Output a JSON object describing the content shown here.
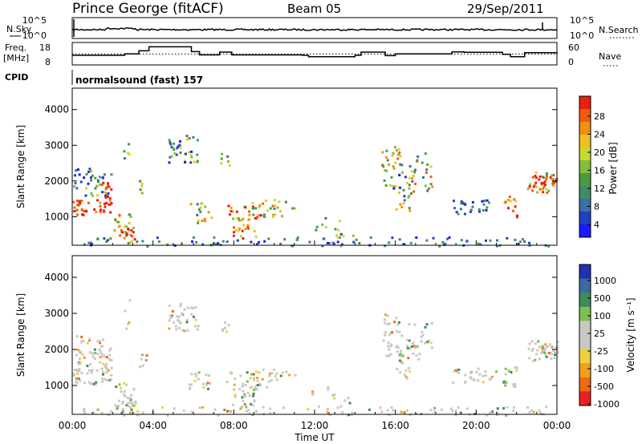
{
  "header": {
    "station": "Prince George (fitACF)",
    "beam": "Beam 05",
    "date": "29/Sep/2011"
  },
  "left_labels": {
    "nsky": "N.Sky",
    "freq_line1": "Freq.",
    "freq_line2": "[MHz]",
    "cpid": "CPID"
  },
  "right_labels": {
    "nsearch": "N.Search",
    "nave": "Nave"
  },
  "cpid_text": "normalsound (fast) 157",
  "chart_data": [
    {
      "type": "line",
      "panel": "noise",
      "ylim_ticks": [
        "10^5",
        "10^0"
      ],
      "right_ticks": [
        "10^5",
        "10^0"
      ],
      "series": [
        {
          "name": "N.Sky",
          "style": "solid"
        },
        {
          "name": "N.Search",
          "style": "dotted"
        }
      ]
    },
    {
      "type": "line",
      "panel": "frequency",
      "left_ticks": [
        "18",
        "8"
      ],
      "right_ticks": [
        "60",
        "0"
      ],
      "series": [
        {
          "name": "Freq.",
          "style": "solid",
          "x": [
            0,
            2.6,
            3.3,
            3.8,
            5.9,
            6.3,
            7.3,
            7.9,
            11.4,
            11.7,
            14.0,
            14.3,
            15.5,
            16.0,
            18.8,
            19.4,
            21.3,
            21.7,
            22.4,
            24
          ],
          "y": [
            12.8,
            13.5,
            15.2,
            17.4,
            14.8,
            13.0,
            14.5,
            13.0,
            12.8,
            12.0,
            12.8,
            14.5,
            12.6,
            13.5,
            14.6,
            14.4,
            13.3,
            12.0,
            14.2,
            13.5
          ]
        },
        {
          "name": "Nave",
          "style": "dotted",
          "value": 33
        }
      ]
    },
    {
      "type": "heatmap",
      "panel": "power",
      "ylabel": "Slant Range [km]",
      "y_ticks": [
        "4000",
        "3000",
        "2000",
        "1000"
      ],
      "colorbar_label": "Power [dB]",
      "colorbar_ticks": [
        "28",
        "24",
        "20",
        "16",
        "12",
        "8",
        "4"
      ],
      "colors": [
        "#1a1aff",
        "#2040c0",
        "#3a6fa8",
        "#3f8c68",
        "#4c9a40",
        "#7fbf3a",
        "#c8d832",
        "#f0c020",
        "#f09010",
        "#f05a10",
        "#e82010"
      ],
      "ylim": [
        200,
        4600
      ]
    },
    {
      "type": "heatmap",
      "panel": "velocity",
      "ylabel": "Slant Range [km]",
      "y_ticks": [
        "4000",
        "3000",
        "2000",
        "1000"
      ],
      "colorbar_label": "Velocity [m s⁻¹]",
      "colorbar_ticks": [
        "1000",
        "500",
        "100",
        "25",
        "-25",
        "-100",
        "-500",
        "-1000"
      ],
      "colors": [
        "#2030b0",
        "#3a6aa0",
        "#3f8c5a",
        "#7cc050",
        "#c8c8c4",
        "#c8c8c4",
        "#f0d040",
        "#f0a020",
        "#f06a10",
        "#e82020"
      ],
      "x_ticks": [
        "00:00",
        "04:00",
        "08:00",
        "12:00",
        "16:00",
        "20:00",
        "00:00"
      ],
      "xlabel": "Time UT",
      "ylim": [
        200,
        4600
      ]
    }
  ]
}
